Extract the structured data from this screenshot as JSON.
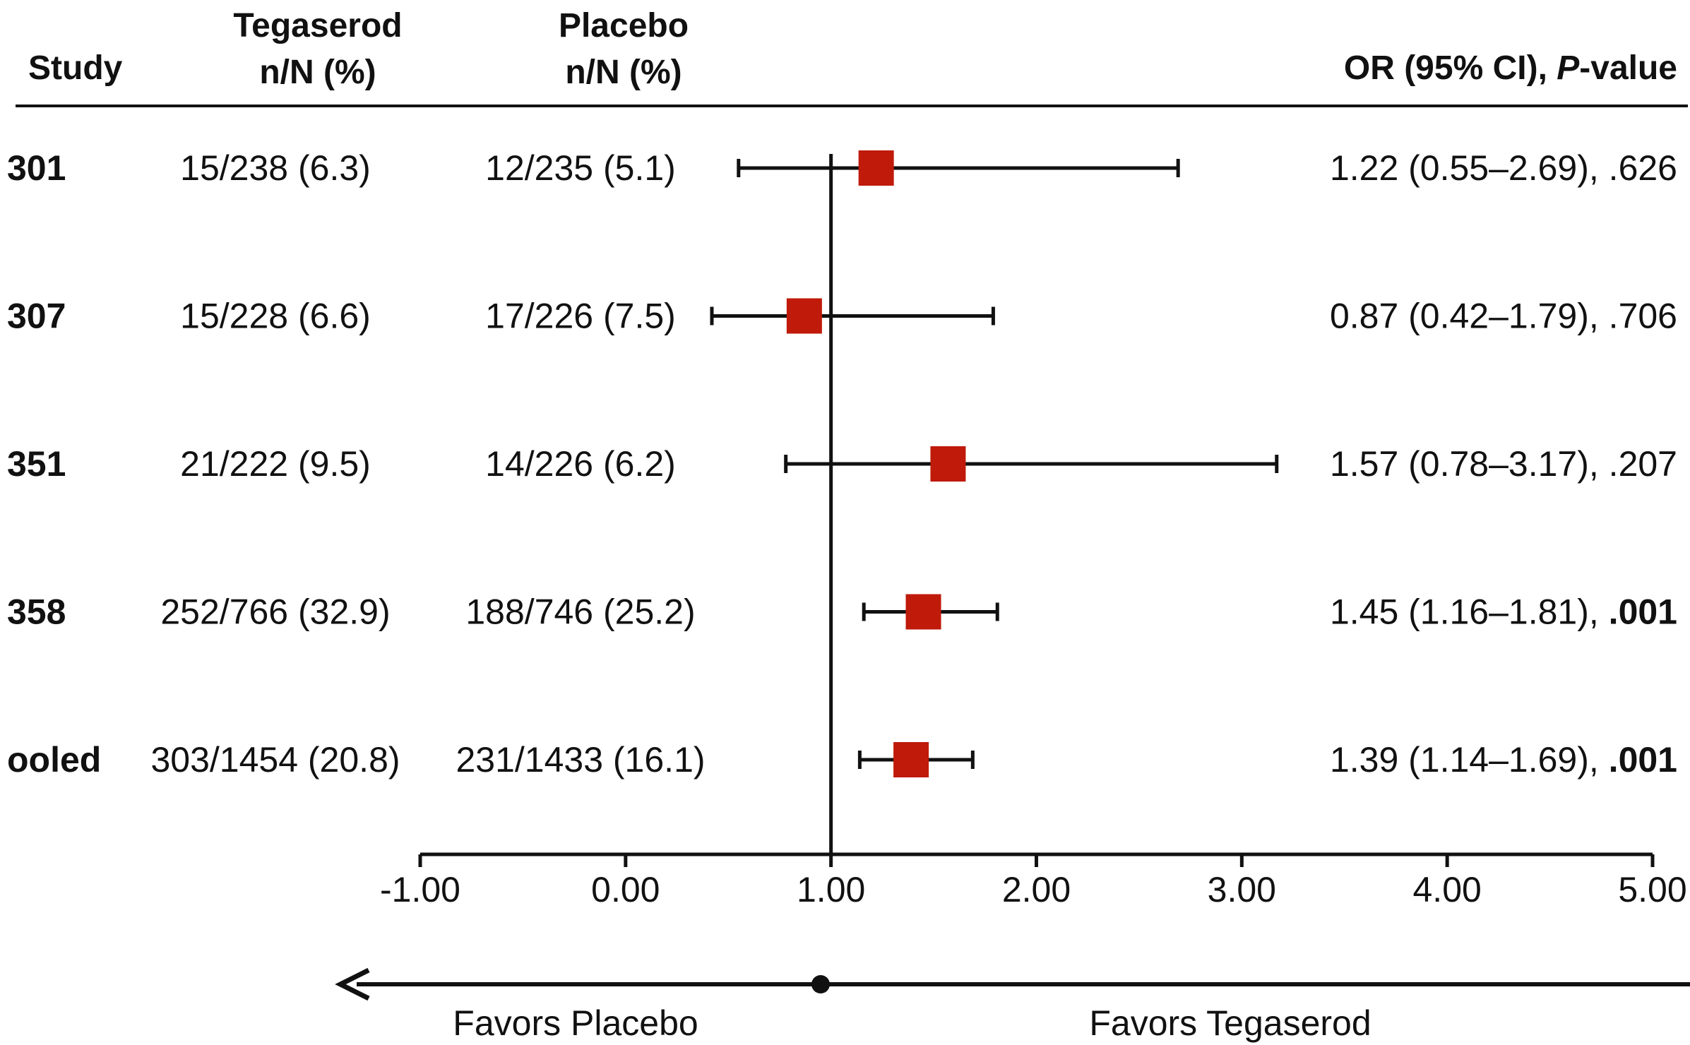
{
  "headers": {
    "study": "Study",
    "tegaserod_line1": "Tegaserod",
    "tegaserod_line2": "n/N (%)",
    "placebo_line1": "Placebo",
    "placebo_line2": "n/N (%)",
    "or_prefix": "OR (95% CI), ",
    "or_p": "P",
    "or_suffix": "-value"
  },
  "footer": {
    "favors_placebo": "Favors Placebo",
    "favors_tegaserod": "Favors Tegaserod"
  },
  "colors": {
    "marker": "#bf1a0a",
    "line": "#111111"
  },
  "chart_data": {
    "type": "forest",
    "xlim": [
      -1.0,
      5.0
    ],
    "xticks": [
      -1.0,
      0.0,
      1.0,
      2.0,
      3.0,
      4.0,
      5.0
    ],
    "xtick_labels": [
      "-1.00",
      "0.00",
      "1.00",
      "2.00",
      "3.00",
      "4.00",
      "5.00"
    ],
    "reference_line": 1.0,
    "rows": [
      {
        "study": "301",
        "tegaserod": "15/238 (6.3)",
        "placebo": "12/235 (5.1)",
        "or": 1.22,
        "ci_low": 0.55,
        "ci_high": 2.69,
        "or_text": "1.22 (0.55–2.69), ",
        "p_text": ".626",
        "p_bold": false
      },
      {
        "study": "307",
        "tegaserod": "15/228 (6.6)",
        "placebo": "17/226 (7.5)",
        "or": 0.87,
        "ci_low": 0.42,
        "ci_high": 1.79,
        "or_text": "0.87 (0.42–1.79), ",
        "p_text": ".706",
        "p_bold": false
      },
      {
        "study": "351",
        "tegaserod": "21/222 (9.5)",
        "placebo": "14/226 (6.2)",
        "or": 1.57,
        "ci_low": 0.78,
        "ci_high": 3.17,
        "or_text": "1.57 (0.78–3.17), ",
        "p_text": ".207",
        "p_bold": false
      },
      {
        "study": "358",
        "tegaserod": "252/766 (32.9)",
        "placebo": "188/746 (25.2)",
        "or": 1.45,
        "ci_low": 1.16,
        "ci_high": 1.81,
        "or_text": "1.45 (1.16–1.81), ",
        "p_text": ".001",
        "p_bold": true
      },
      {
        "study": "ooled",
        "tegaserod": "303/1454 (20.8)",
        "placebo": "231/1433 (16.1)",
        "or": 1.39,
        "ci_low": 1.14,
        "ci_high": 1.69,
        "or_text": "1.39 (1.14–1.69), ",
        "p_text": ".001",
        "p_bold": true
      }
    ]
  }
}
